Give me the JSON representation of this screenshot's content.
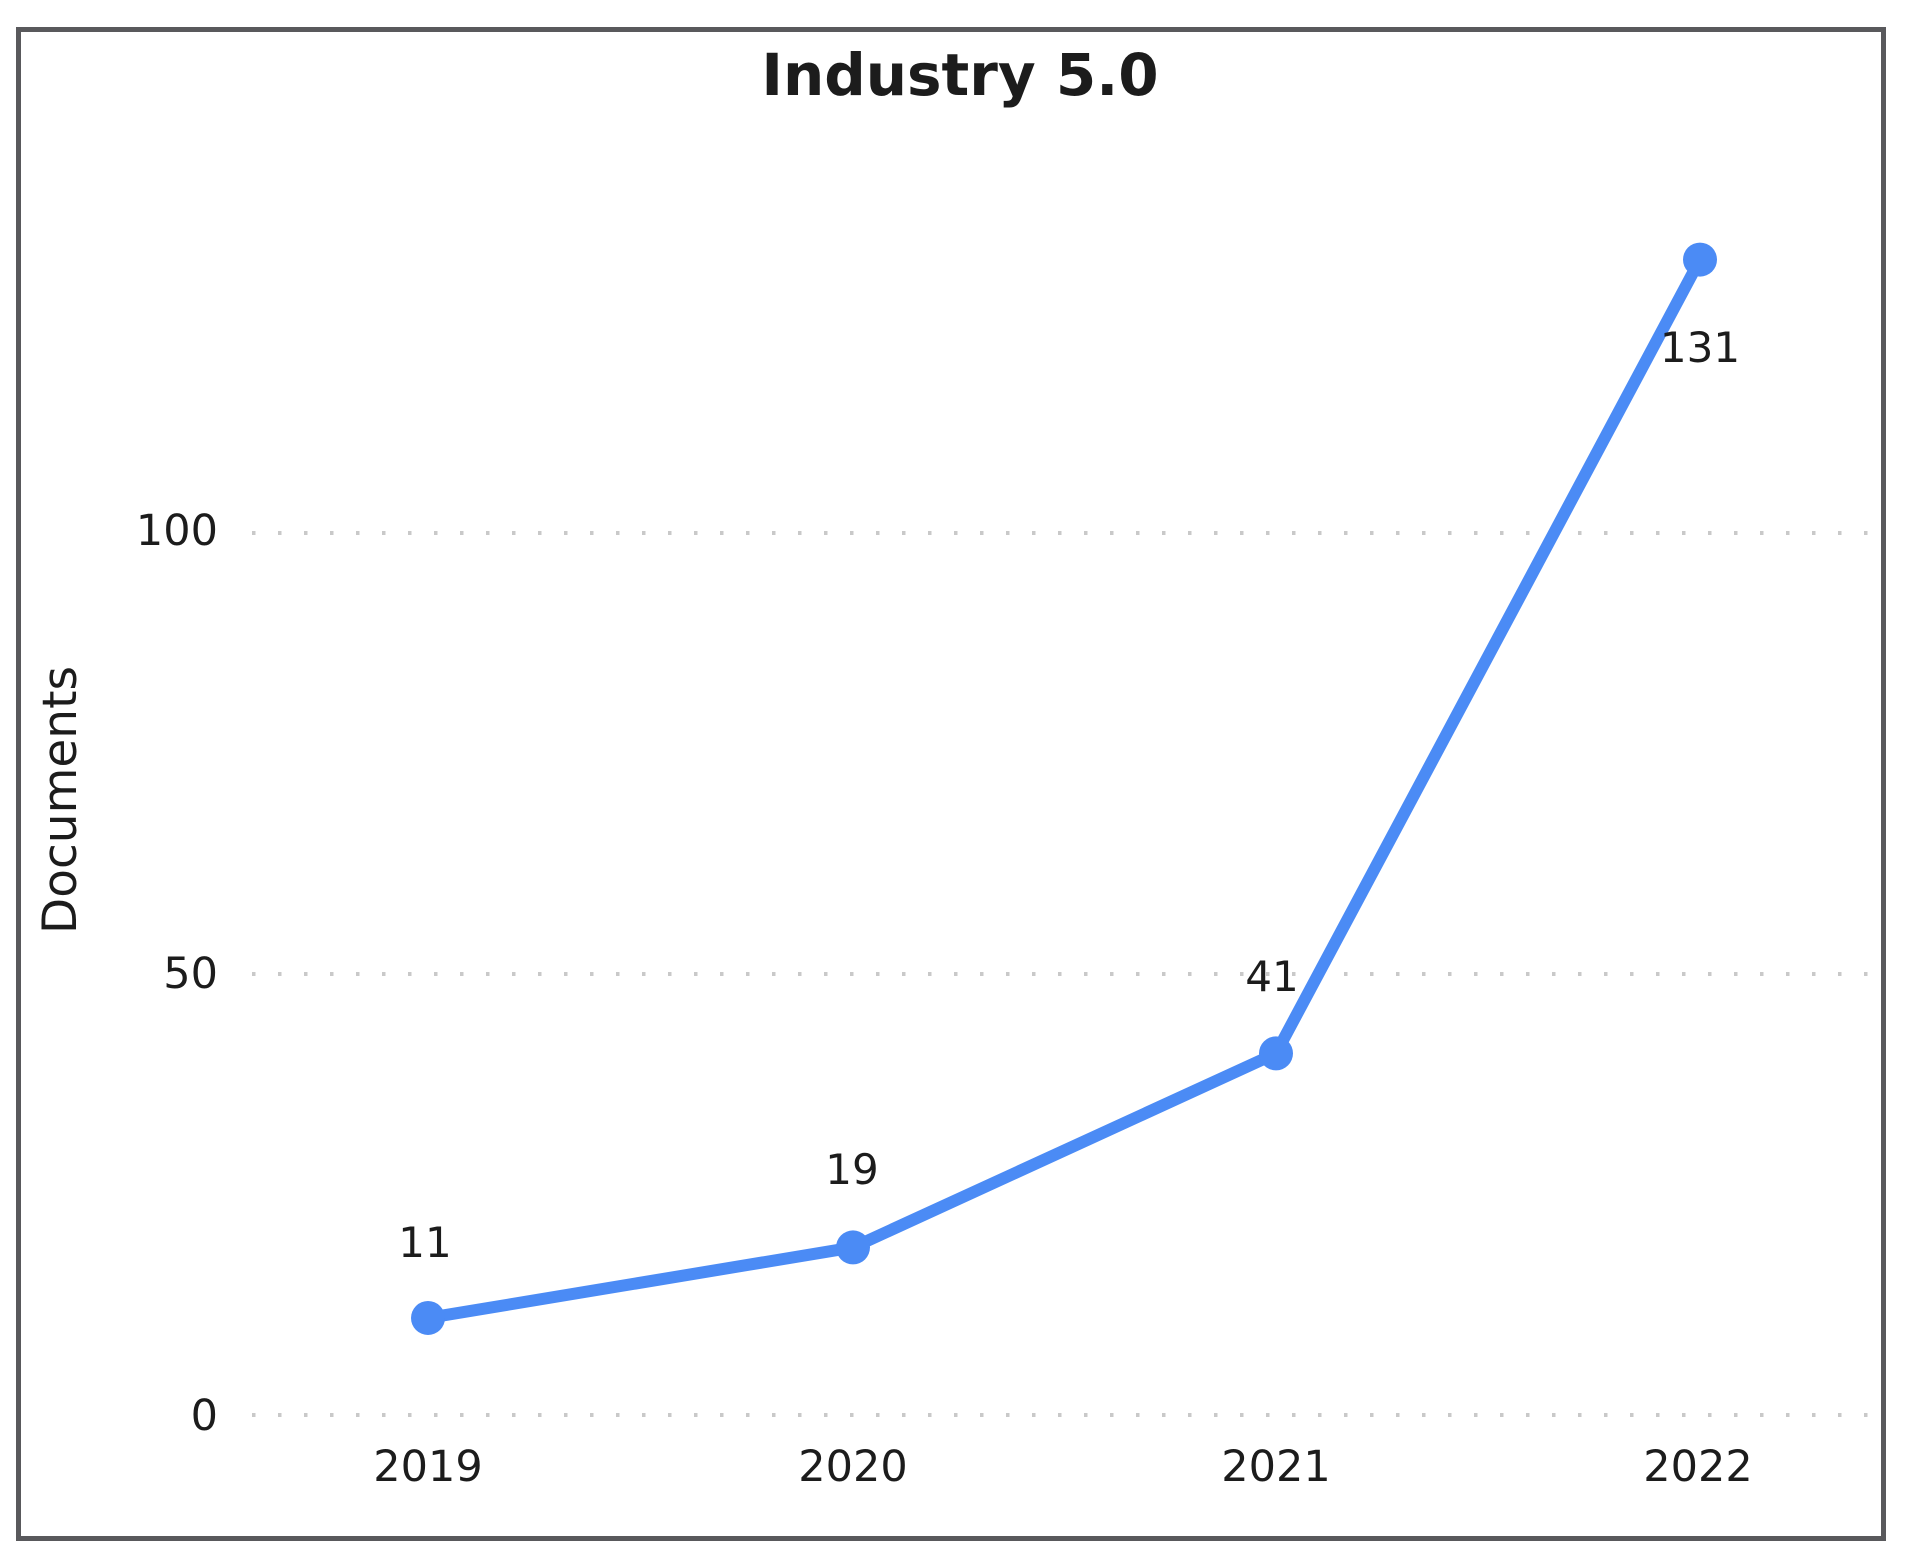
{
  "window": {
    "background_color": "#ffffff",
    "frame_border_color": "#59595c"
  },
  "chart_data": {
    "type": "line",
    "title": "Industry 5.0",
    "xlabel": "",
    "ylabel": "Documents",
    "categories": [
      "2019",
      "2020",
      "2021",
      "2022"
    ],
    "series": [
      {
        "name": "Documents",
        "values": [
          11,
          19,
          41,
          131
        ]
      }
    ],
    "point_labels": [
      "11",
      "19",
      "41",
      "131"
    ],
    "ytick_labels": [
      "0",
      "50",
      "100"
    ],
    "yticks": [
      0,
      50,
      100
    ],
    "ylim": [
      0,
      137
    ],
    "grid": "horizontal dotted lines at y ticks",
    "legend_position": "none",
    "line_color": "#4b8bf5",
    "marker_color": "#4b8bf5",
    "grid_dot_color": "#c9c9c9",
    "text_color": "#1c1c1c"
  }
}
